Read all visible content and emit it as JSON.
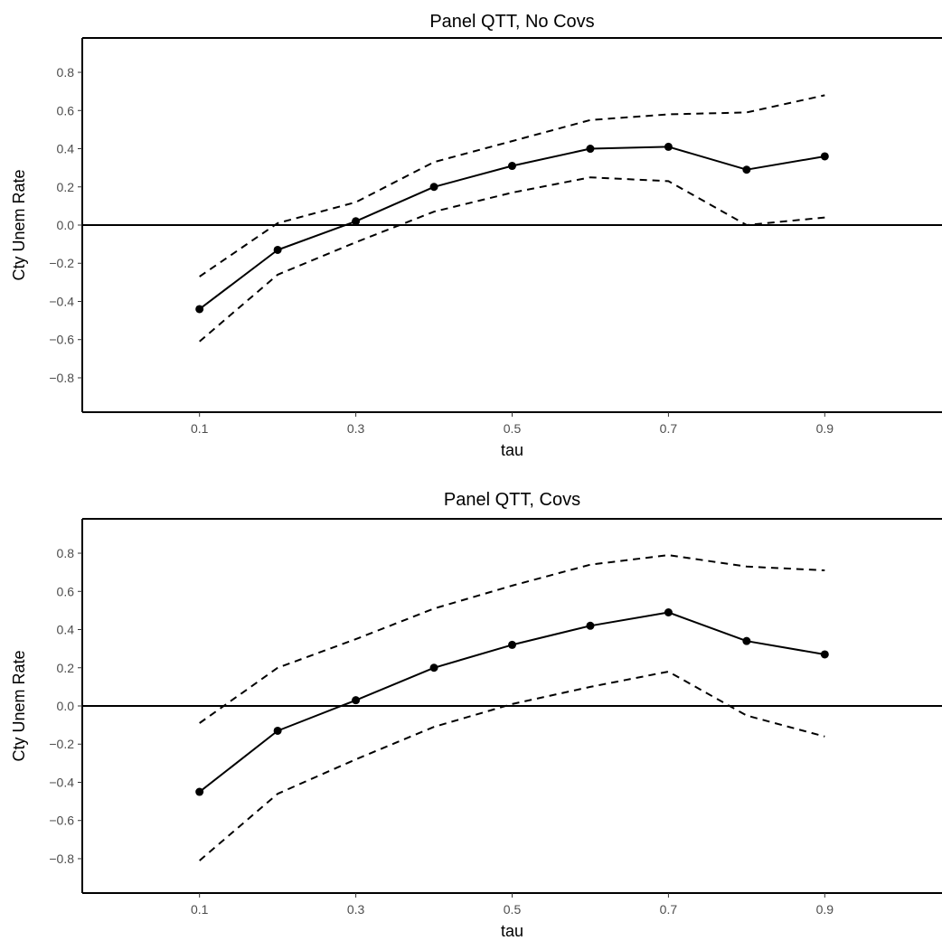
{
  "chart_data": [
    {
      "type": "line",
      "title": "Panel QTT, No Covs",
      "xlabel": "tau",
      "ylabel": "Cty Unem Rate",
      "x": [
        0.1,
        0.2,
        0.3,
        0.4,
        0.5,
        0.6,
        0.7,
        0.8,
        0.9
      ],
      "xticks": [
        "0.1",
        "0.3",
        "0.5",
        "0.7",
        "0.9"
      ],
      "yticks": [
        "0.8",
        "0.6",
        "0.4",
        "0.2",
        "0.0",
        "-0.2",
        "-0.4",
        "-0.6",
        "-0.8"
      ],
      "xlim": [
        -0.05,
        1.05
      ],
      "ylim": [
        -0.98,
        0.98
      ],
      "reference_line": 0,
      "grid": false,
      "series": [
        {
          "values": [
            -0.44,
            -0.13,
            0.02,
            0.2,
            0.31,
            0.4,
            0.41,
            0.29,
            0.36
          ],
          "style": "solid",
          "markers": true
        },
        {
          "values": [
            -0.27,
            0.01,
            0.12,
            0.33,
            0.44,
            0.55,
            0.58,
            0.59,
            0.68
          ],
          "style": "dashed",
          "markers": false
        },
        {
          "values": [
            -0.61,
            -0.26,
            -0.09,
            0.07,
            0.17,
            0.25,
            0.23,
            0.0,
            0.04
          ],
          "style": "dashed",
          "markers": false
        }
      ]
    },
    {
      "type": "line",
      "title": "Panel QTT, Covs",
      "xlabel": "tau",
      "ylabel": "Cty Unem Rate",
      "x": [
        0.1,
        0.2,
        0.3,
        0.4,
        0.5,
        0.6,
        0.7,
        0.8,
        0.9
      ],
      "xticks": [
        "0.1",
        "0.3",
        "0.5",
        "0.7",
        "0.9"
      ],
      "yticks": [
        "0.8",
        "0.6",
        "0.4",
        "0.2",
        "0.0",
        "-0.2",
        "-0.4",
        "-0.6",
        "-0.8"
      ],
      "xlim": [
        -0.05,
        1.05
      ],
      "ylim": [
        -0.98,
        0.98
      ],
      "reference_line": 0,
      "grid": false,
      "series": [
        {
          "values": [
            -0.45,
            -0.13,
            0.03,
            0.2,
            0.32,
            0.42,
            0.49,
            0.34,
            0.27
          ],
          "style": "solid",
          "markers": true
        },
        {
          "values": [
            -0.09,
            0.2,
            0.35,
            0.51,
            0.63,
            0.74,
            0.79,
            0.73,
            0.71
          ],
          "style": "dashed",
          "markers": false
        },
        {
          "values": [
            -0.81,
            -0.46,
            -0.28,
            -0.11,
            0.01,
            0.1,
            0.18,
            -0.05,
            -0.16
          ],
          "style": "dashed",
          "markers": false
        }
      ]
    }
  ]
}
